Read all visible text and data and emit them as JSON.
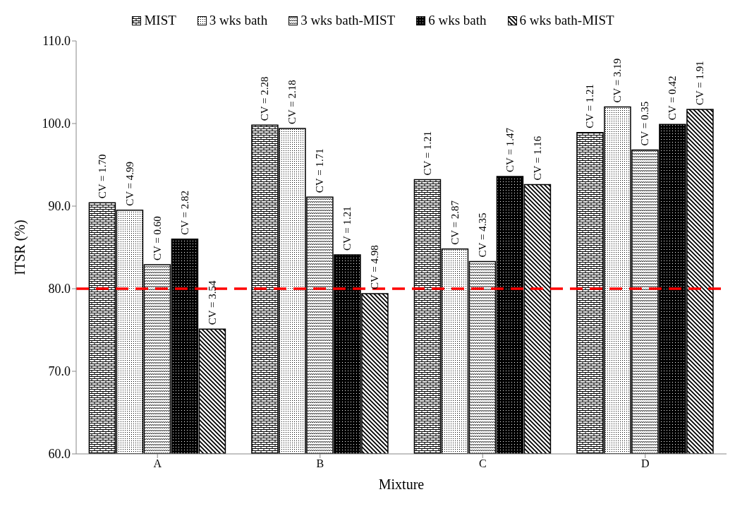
{
  "chart_data": {
    "type": "bar",
    "xlabel": "Mixture",
    "ylabel": "ITSR (%)",
    "categories": [
      "A",
      "B",
      "C",
      "D"
    ],
    "series": [
      {
        "name": "MIST",
        "color": "#000000",
        "values": [
          90.4,
          99.8,
          93.2,
          98.9
        ]
      },
      {
        "name": "3 wks bath",
        "color": "#000000",
        "values": [
          89.5,
          99.4,
          84.8,
          102.0
        ]
      },
      {
        "name": "3 wks bath-MIST",
        "color": "#000000",
        "values": [
          82.9,
          91.1,
          83.3,
          96.8
        ]
      },
      {
        "name": "6 wks bath",
        "color": "#000000",
        "values": [
          86.0,
          84.1,
          93.6,
          99.9
        ]
      },
      {
        "name": "6 wks bath-MIST",
        "color": "#000000",
        "values": [
          75.1,
          79.4,
          92.6,
          101.7
        ]
      }
    ],
    "annotations": [
      "CV = 1.70",
      "CV = 2.28",
      "CV = 1.21",
      "CV = 1.21",
      "CV = 4.99",
      "CV = 2.18",
      "CV = 2.87",
      "CV = 3.19",
      "CV = 0.60",
      "CV = 1.71",
      "CV = 4.35",
      "CV = 0.35",
      "CV = 2.82",
      "CV = 1.21",
      "CV = 1.47",
      "CV = 0.42",
      "CV = 3.54",
      "CV = 4.98",
      "CV = 1.16",
      "CV = 1.91"
    ],
    "ylim": [
      60,
      110
    ],
    "yticks": [
      {
        "value": 60,
        "label": "60.0"
      },
      {
        "value": 70,
        "label": "70.0"
      },
      {
        "value": 80,
        "label": "80.0"
      },
      {
        "value": 90,
        "label": "90.0"
      },
      {
        "value": 100,
        "label": "100.0"
      },
      {
        "value": 110,
        "label": "110.0"
      }
    ],
    "ref_lines": [
      {
        "axis": "y",
        "value": 80,
        "color": "#ff0000",
        "line_style": "dashed"
      }
    ],
    "grid": false,
    "legend": "top"
  }
}
